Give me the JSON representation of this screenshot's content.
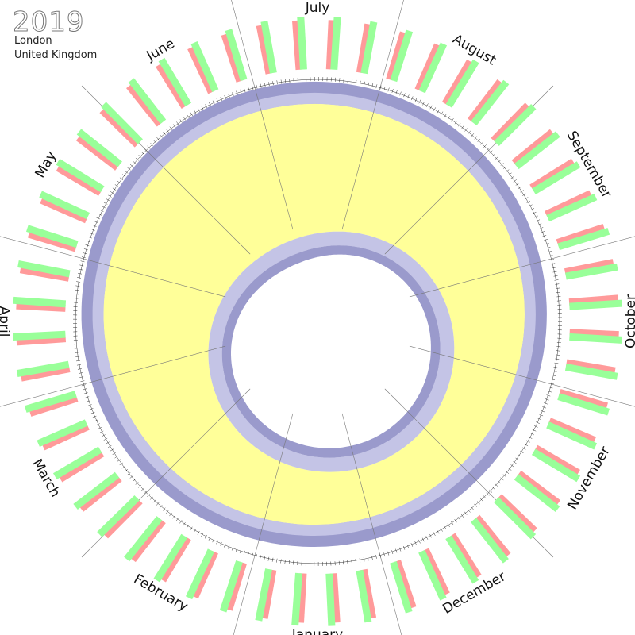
{
  "header": {
    "title": "2019",
    "location": [
      "London",
      "United Kingdom"
    ]
  },
  "months": [
    "January",
    "February",
    "March",
    "April",
    "May",
    "June",
    "July",
    "August",
    "September",
    "October",
    "November",
    "December"
  ]
}
